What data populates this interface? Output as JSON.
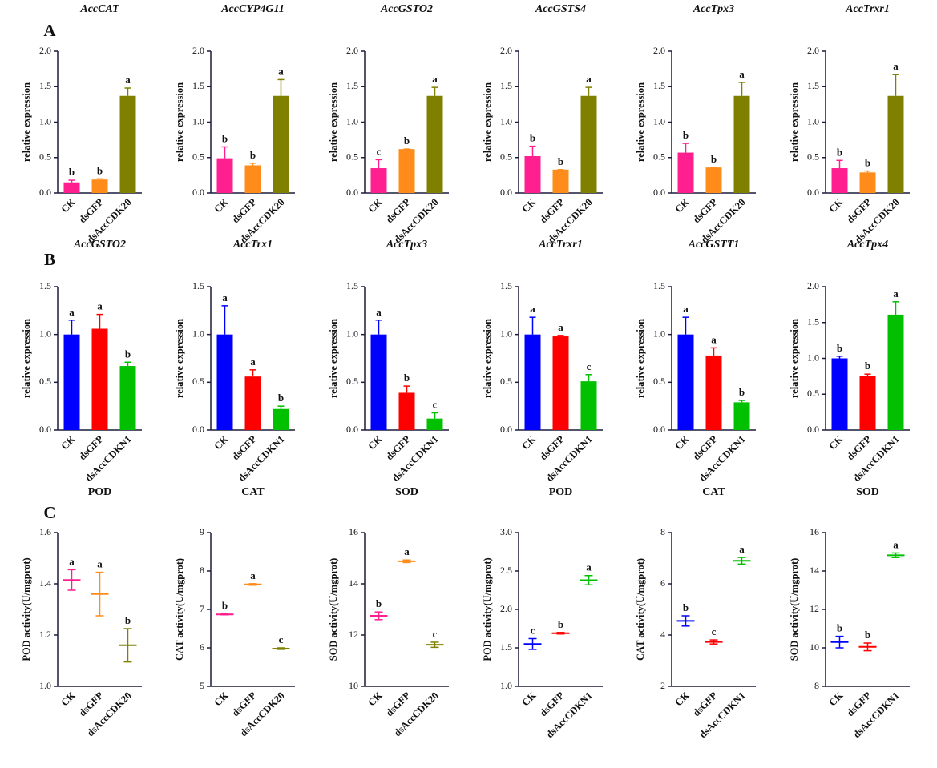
{
  "chart_data": [
    {
      "type": "bar",
      "panel": "A",
      "title": "AccCAT",
      "ylabel": "relative expression",
      "categories": [
        "CK",
        "dsGFP",
        "dsAccCDK20"
      ],
      "colors": [
        "#ff1f8f",
        "#ff8c1a",
        "#808000"
      ],
      "values": [
        0.15,
        0.19,
        1.37
      ],
      "errors": [
        0.03,
        0.01,
        0.11
      ],
      "annotations": [
        "b",
        "b",
        "a"
      ],
      "ylim": [
        0,
        2
      ],
      "yticks": [
        {
          "value": 0,
          "label": "0.0"
        },
        0.5,
        {
          "value": 1,
          "label": "1.0"
        },
        1.5,
        {
          "value": 2,
          "label": "2.0"
        }
      ]
    },
    {
      "type": "bar",
      "title": "AccCYP4G11",
      "ylabel": "relative expression",
      "categories": [
        "CK",
        "dsGFP",
        "dsAccCDK20"
      ],
      "colors": [
        "#ff1f8f",
        "#ff8c1a",
        "#808000"
      ],
      "values": [
        0.49,
        0.39,
        1.37
      ],
      "errors": [
        0.16,
        0.03,
        0.23
      ],
      "annotations": [
        "b",
        "b",
        "a"
      ],
      "ylim": [
        0,
        2
      ],
      "yticks": [
        {
          "value": 0,
          "label": "0.0"
        },
        0.5,
        {
          "value": 1,
          "label": "1.0"
        },
        1.5,
        {
          "value": 2,
          "label": "2.0"
        }
      ]
    },
    {
      "type": "bar",
      "title": "AccGSTO2",
      "ylabel": "relative expression",
      "categories": [
        "CK",
        "dsGFP",
        "dsAccCDK20"
      ],
      "colors": [
        "#ff1f8f",
        "#ff8c1a",
        "#808000"
      ],
      "values": [
        0.35,
        0.62,
        1.37
      ],
      "errors": [
        0.12,
        0.0,
        0.12
      ],
      "annotations": [
        "c",
        "b",
        "a"
      ],
      "ylim": [
        0,
        2
      ],
      "yticks": [
        {
          "value": 0,
          "label": "0.0"
        },
        0.5,
        {
          "value": 1,
          "label": "1.0"
        },
        1.5,
        {
          "value": 2,
          "label": "2.0"
        }
      ]
    },
    {
      "type": "bar",
      "title": "AccGSTS4",
      "ylabel": "relative expression",
      "categories": [
        "CK",
        "dsGFP",
        "dsAccCDK20"
      ],
      "colors": [
        "#ff1f8f",
        "#ff8c1a",
        "#808000"
      ],
      "values": [
        0.52,
        0.33,
        1.37
      ],
      "errors": [
        0.14,
        0.0,
        0.12
      ],
      "annotations": [
        "b",
        "b",
        "a"
      ],
      "ylim": [
        0,
        2
      ],
      "yticks": [
        {
          "value": 0,
          "label": "0.0"
        },
        0.5,
        {
          "value": 1,
          "label": "1.0"
        },
        1.5,
        {
          "value": 2,
          "label": "2.0"
        }
      ]
    },
    {
      "type": "bar",
      "title": "AccTpx3",
      "ylabel": "relative expression",
      "categories": [
        "CK",
        "dsGFP",
        "dsAccCDK20"
      ],
      "colors": [
        "#ff1f8f",
        "#ff8c1a",
        "#808000"
      ],
      "values": [
        0.57,
        0.36,
        1.37
      ],
      "errors": [
        0.13,
        0.0,
        0.19
      ],
      "annotations": [
        "b",
        "b",
        "a"
      ],
      "ylim": [
        0,
        2
      ],
      "yticks": [
        {
          "value": 0,
          "label": "0.0"
        },
        0.5,
        {
          "value": 1,
          "label": "1.0"
        },
        1.5,
        {
          "value": 2,
          "label": "2.0"
        }
      ]
    },
    {
      "type": "bar",
      "title": "AccTrxr1",
      "ylabel": "relative expression",
      "categories": [
        "CK",
        "dsGFP",
        "dsAccCDK20"
      ],
      "colors": [
        "#ff1f8f",
        "#ff8c1a",
        "#808000"
      ],
      "values": [
        0.35,
        0.29,
        1.37
      ],
      "errors": [
        0.11,
        0.02,
        0.3
      ],
      "annotations": [
        "b",
        "b",
        "a"
      ],
      "ylim": [
        0,
        2
      ],
      "yticks": [
        {
          "value": 0,
          "label": "0.0"
        },
        0.5,
        {
          "value": 1,
          "label": "1.0"
        },
        1.5,
        {
          "value": 2,
          "label": "2.0"
        }
      ]
    },
    {
      "type": "bar",
      "panel": "B",
      "title": "AccGSTO2",
      "ylabel": "relative expression",
      "categories": [
        "CK",
        "dsGFP",
        "dsAccCDKN1"
      ],
      "colors": [
        "#0000ff",
        "#ff0000",
        "#00c000"
      ],
      "values": [
        1.0,
        1.06,
        0.67
      ],
      "errors": [
        0.15,
        0.15,
        0.04
      ],
      "annotations": [
        "a",
        "a",
        "b"
      ],
      "ylim": [
        0,
        1.5
      ],
      "yticks": [
        {
          "value": 0,
          "label": "0.0"
        },
        0.5,
        {
          "value": 1,
          "label": "1.0"
        },
        1.5
      ]
    },
    {
      "type": "bar",
      "title": "AccTrx1",
      "ylabel": "relative expression",
      "categories": [
        "CK",
        "dsGFP",
        "dsAccCDKN1"
      ],
      "colors": [
        "#0000ff",
        "#ff0000",
        "#00c000"
      ],
      "values": [
        1.0,
        0.56,
        0.22
      ],
      "errors": [
        0.3,
        0.07,
        0.03
      ],
      "annotations": [
        "a",
        "a",
        "b"
      ],
      "ylim": [
        0,
        1.5
      ],
      "yticks": [
        {
          "value": 0,
          "label": "0.0"
        },
        0.5,
        {
          "value": 1,
          "label": "1.0"
        },
        1.5
      ]
    },
    {
      "type": "bar",
      "title": "AccTpx3",
      "ylabel": "relative expression",
      "categories": [
        "CK",
        "dsGFP",
        "dsAccCDKN1"
      ],
      "colors": [
        "#0000ff",
        "#ff0000",
        "#00c000"
      ],
      "values": [
        1.0,
        0.39,
        0.12
      ],
      "errors": [
        0.15,
        0.07,
        0.06
      ],
      "annotations": [
        "a",
        "b",
        "c"
      ],
      "ylim": [
        0,
        1.5
      ],
      "yticks": [
        {
          "value": 0,
          "label": "0.0"
        },
        0.5,
        {
          "value": 1,
          "label": "1.0"
        },
        1.5
      ]
    },
    {
      "type": "bar",
      "title": "AccTrxr1",
      "ylabel": "relative expression",
      "categories": [
        "CK",
        "dsGFP",
        "dsAccCDKN1"
      ],
      "colors": [
        "#0000ff",
        "#ff0000",
        "#00c000"
      ],
      "values": [
        1.0,
        0.98,
        0.51
      ],
      "errors": [
        0.18,
        0.01,
        0.07
      ],
      "annotations": [
        "a",
        "a",
        "c"
      ],
      "ylim": [
        0,
        1.5
      ],
      "yticks": [
        {
          "value": 0,
          "label": "0.0"
        },
        0.5,
        {
          "value": 1,
          "label": "1.0"
        },
        1.5
      ]
    },
    {
      "type": "bar",
      "title": "AccGSTT1",
      "ylabel": "relative expression",
      "categories": [
        "CK",
        "dsGFP",
        "dsAccCDKN1"
      ],
      "colors": [
        "#0000ff",
        "#ff0000",
        "#00c000"
      ],
      "values": [
        1.0,
        0.78,
        0.29
      ],
      "errors": [
        0.18,
        0.08,
        0.02
      ],
      "annotations": [
        "a",
        "a",
        "b"
      ],
      "ylim": [
        0,
        1.5
      ],
      "yticks": [
        {
          "value": 0,
          "label": "0.0"
        },
        0.5,
        {
          "value": 1,
          "label": "1.0"
        },
        1.5
      ]
    },
    {
      "type": "bar",
      "title": "AccTpx4",
      "ylabel": "relative expression",
      "categories": [
        "CK",
        "dsGFP",
        "dsAccCDKN1"
      ],
      "colors": [
        "#0000ff",
        "#ff0000",
        "#00c000"
      ],
      "values": [
        1.0,
        0.75,
        1.61
      ],
      "errors": [
        0.03,
        0.03,
        0.18
      ],
      "annotations": [
        "b",
        "b",
        "a"
      ],
      "ylim": [
        0,
        2
      ],
      "yticks": [
        {
          "value": 0,
          "label": "0.0"
        },
        0.5,
        {
          "value": 1,
          "label": "1.0"
        },
        1.5,
        {
          "value": 2,
          "label": "2.0"
        }
      ]
    },
    {
      "type": "dot",
      "panel": "C",
      "title": "POD",
      "ylabel": "POD activity(U/mgprot)",
      "categories": [
        "CK",
        "dsGFP",
        "dsAccCDK20"
      ],
      "colors": [
        "#ff1f8f",
        "#ff8c1a",
        "#808000"
      ],
      "values": [
        1.415,
        1.36,
        1.16
      ],
      "errors": [
        0.04,
        0.085,
        0.065
      ],
      "annotations": [
        "a",
        "a",
        "b"
      ],
      "ylim": [
        1.0,
        1.6
      ],
      "yticks": [
        {
          "value": 1,
          "label": "1.0"
        },
        1.2,
        1.4,
        1.6
      ]
    },
    {
      "type": "dot",
      "title": "CAT",
      "ylabel": "CAT activity(U/mgprot)",
      "categories": [
        "CK",
        "dsGFP",
        "dsAccCDK20"
      ],
      "colors": [
        "#ff1f8f",
        "#ff8c1a",
        "#808000"
      ],
      "values": [
        6.87,
        7.65,
        5.98
      ],
      "errors": [
        0.01,
        0.02,
        0.02
      ],
      "annotations": [
        "b",
        "a",
        "c"
      ],
      "ylim": [
        5,
        9
      ],
      "yticks": [
        5,
        6,
        7,
        8,
        9
      ]
    },
    {
      "type": "dot",
      "title": "SOD",
      "ylabel": "SOD activity(U/mgprot)",
      "categories": [
        "CK",
        "dsGFP",
        "dsAccCDK20"
      ],
      "colors": [
        "#ff1f8f",
        "#ff8c1a",
        "#808000"
      ],
      "values": [
        12.75,
        14.88,
        11.62
      ],
      "errors": [
        0.15,
        0.05,
        0.1
      ],
      "annotations": [
        "b",
        "a",
        "c"
      ],
      "ylim": [
        10,
        16
      ],
      "yticks": [
        10,
        12,
        14,
        16
      ]
    },
    {
      "type": "dot",
      "title": "POD",
      "ylabel": "POD activity(U/mgprot)",
      "categories": [
        "CK",
        "dsGFP",
        "dsAccCDKN1"
      ],
      "colors": [
        "#0000ff",
        "#ff0000",
        "#00c000"
      ],
      "values": [
        1.55,
        1.69,
        2.38
      ],
      "errors": [
        0.07,
        0.01,
        0.06
      ],
      "annotations": [
        "c",
        "b",
        "a"
      ],
      "ylim": [
        1.0,
        3.0
      ],
      "yticks": [
        {
          "value": 1,
          "label": "1.0"
        },
        1.5,
        {
          "value": 2,
          "label": "2.0"
        },
        2.5,
        {
          "value": 3,
          "label": "3.0"
        }
      ]
    },
    {
      "type": "dot",
      "title": "CAT",
      "ylabel": "CAT activity(U/mgprot)",
      "categories": [
        "CK",
        "dsGFP",
        "dsAccCDKN1"
      ],
      "colors": [
        "#0000ff",
        "#ff0000",
        "#00c000"
      ],
      "values": [
        4.55,
        3.73,
        6.9
      ],
      "errors": [
        0.2,
        0.08,
        0.13
      ],
      "annotations": [
        "b",
        "c",
        "a"
      ],
      "ylim": [
        2,
        8
      ],
      "yticks": [
        2,
        4,
        6,
        8
      ]
    },
    {
      "type": "dot",
      "title": "SOD",
      "ylabel": "SOD activity(U/mgprot)",
      "categories": [
        "CK",
        "dsGFP",
        "dsAccCDKN1"
      ],
      "colors": [
        "#0000ff",
        "#ff0000",
        "#00c000"
      ],
      "values": [
        10.3,
        10.05,
        14.82
      ],
      "errors": [
        0.3,
        0.2,
        0.12
      ],
      "annotations": [
        "b",
        "b",
        "a"
      ],
      "ylim": [
        8,
        16
      ],
      "yticks": [
        8,
        10,
        12,
        14,
        16
      ]
    }
  ]
}
